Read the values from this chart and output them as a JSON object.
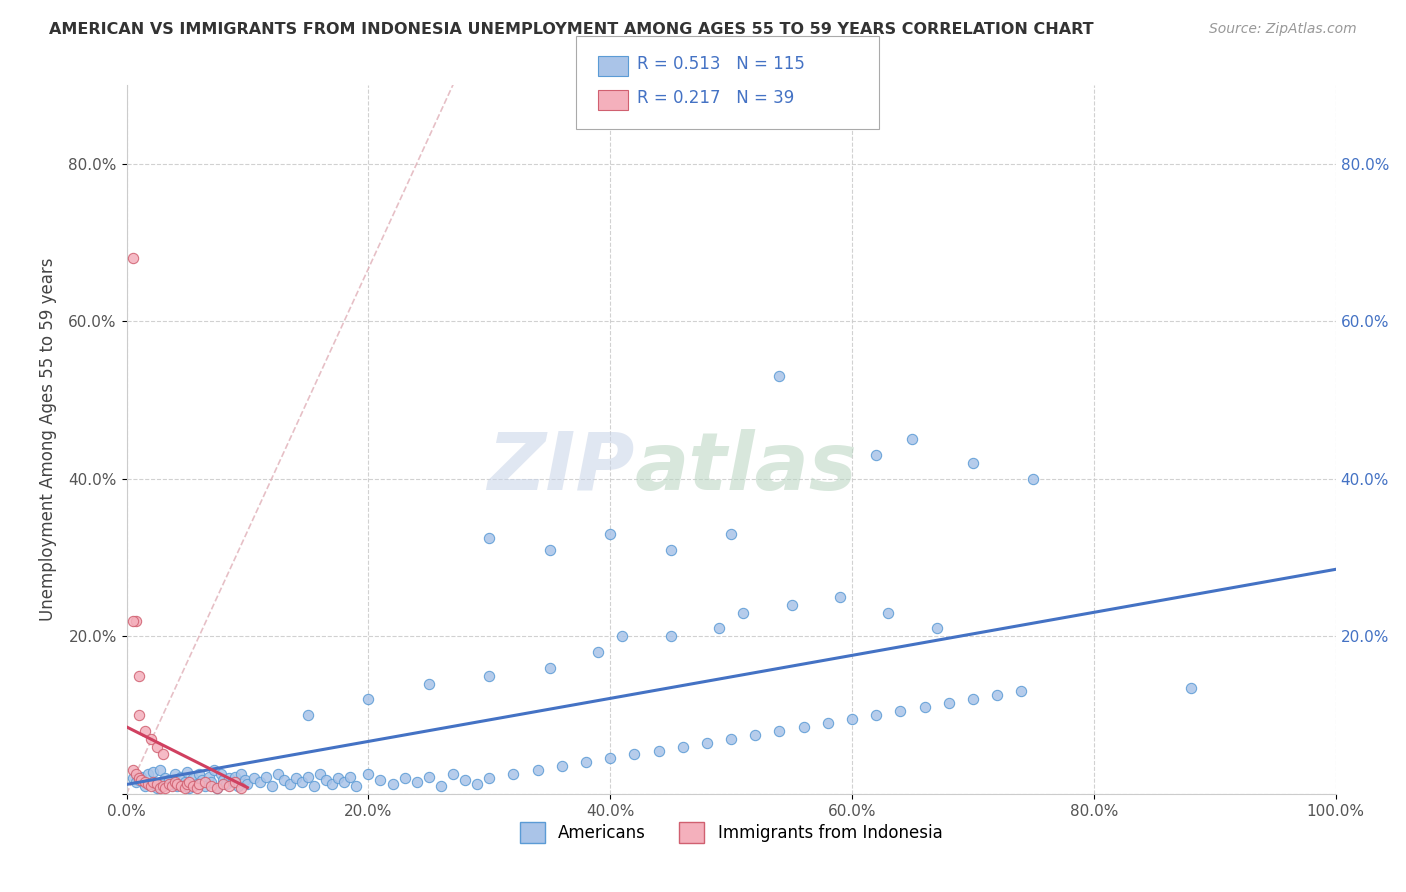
{
  "title": "AMERICAN VS IMMIGRANTS FROM INDONESIA UNEMPLOYMENT AMONG AGES 55 TO 59 YEARS CORRELATION CHART",
  "source": "Source: ZipAtlas.com",
  "ylabel": "Unemployment Among Ages 55 to 59 years",
  "xlim": [
    0,
    1.0
  ],
  "ylim": [
    0,
    0.9
  ],
  "xticks": [
    0.0,
    0.2,
    0.4,
    0.6,
    0.8,
    1.0
  ],
  "yticks": [
    0.0,
    0.2,
    0.4,
    0.6,
    0.8
  ],
  "xticklabels": [
    "0.0%",
    "20.0%",
    "40.0%",
    "60.0%",
    "80.0%",
    "100.0%"
  ],
  "yticklabels_left": [
    "",
    "20.0%",
    "40.0%",
    "60.0%",
    "80.0%"
  ],
  "yticklabels_right": [
    "80.0%",
    "60.0%",
    "40.0%",
    "20.0%"
  ],
  "americans_R": 0.513,
  "americans_N": 115,
  "indonesia_R": 0.217,
  "indonesia_N": 39,
  "legend_R_color": "#4472c4",
  "background_color": "#ffffff",
  "grid_color": "#cccccc",
  "scatter_americans_color": "#aac4e8",
  "scatter_americans_edge": "#5b9bd5",
  "scatter_indonesia_color": "#f4b0bc",
  "scatter_indonesia_edge": "#d06070",
  "trend_americans_color": "#4472c4",
  "trend_indonesia_color": "#d04060",
  "diagonal_color": "#e0b0b8",
  "watermark_zip_color": "#c8d4e8",
  "watermark_atlas_color": "#b8d4c0",
  "americans_x": [
    0.005,
    0.008,
    0.01,
    0.012,
    0.015,
    0.018,
    0.02,
    0.022,
    0.025,
    0.028,
    0.03,
    0.032,
    0.035,
    0.038,
    0.04,
    0.042,
    0.045,
    0.048,
    0.05,
    0.052,
    0.055,
    0.058,
    0.06,
    0.062,
    0.065,
    0.068,
    0.07,
    0.072,
    0.075,
    0.078,
    0.08,
    0.082,
    0.085,
    0.088,
    0.09,
    0.092,
    0.095,
    0.098,
    0.1,
    0.105,
    0.11,
    0.115,
    0.12,
    0.125,
    0.13,
    0.135,
    0.14,
    0.145,
    0.15,
    0.155,
    0.16,
    0.165,
    0.17,
    0.175,
    0.18,
    0.185,
    0.19,
    0.2,
    0.21,
    0.22,
    0.23,
    0.24,
    0.25,
    0.26,
    0.27,
    0.28,
    0.29,
    0.3,
    0.32,
    0.34,
    0.36,
    0.38,
    0.4,
    0.42,
    0.44,
    0.46,
    0.48,
    0.5,
    0.52,
    0.54,
    0.56,
    0.58,
    0.6,
    0.62,
    0.64,
    0.66,
    0.68,
    0.7,
    0.72,
    0.74,
    0.35,
    0.39,
    0.41,
    0.45,
    0.49,
    0.51,
    0.55,
    0.59,
    0.63,
    0.67,
    0.15,
    0.2,
    0.25,
    0.3,
    0.88,
    0.54,
    0.62,
    0.65,
    0.7,
    0.75,
    0.3,
    0.35,
    0.4,
    0.45,
    0.5
  ],
  "americans_y": [
    0.02,
    0.015,
    0.018,
    0.022,
    0.01,
    0.025,
    0.012,
    0.028,
    0.008,
    0.03,
    0.015,
    0.02,
    0.018,
    0.012,
    0.025,
    0.01,
    0.022,
    0.015,
    0.028,
    0.008,
    0.02,
    0.012,
    0.025,
    0.018,
    0.01,
    0.022,
    0.015,
    0.03,
    0.008,
    0.025,
    0.018,
    0.012,
    0.02,
    0.015,
    0.022,
    0.01,
    0.025,
    0.018,
    0.012,
    0.02,
    0.015,
    0.022,
    0.01,
    0.025,
    0.018,
    0.012,
    0.02,
    0.015,
    0.022,
    0.01,
    0.025,
    0.018,
    0.012,
    0.02,
    0.015,
    0.022,
    0.01,
    0.025,
    0.018,
    0.012,
    0.02,
    0.015,
    0.022,
    0.01,
    0.025,
    0.018,
    0.012,
    0.02,
    0.025,
    0.03,
    0.035,
    0.04,
    0.045,
    0.05,
    0.055,
    0.06,
    0.065,
    0.07,
    0.075,
    0.08,
    0.085,
    0.09,
    0.095,
    0.1,
    0.105,
    0.11,
    0.115,
    0.12,
    0.125,
    0.13,
    0.16,
    0.18,
    0.2,
    0.2,
    0.21,
    0.23,
    0.24,
    0.25,
    0.23,
    0.21,
    0.1,
    0.12,
    0.14,
    0.15,
    0.135,
    0.53,
    0.43,
    0.45,
    0.42,
    0.4,
    0.325,
    0.31,
    0.33,
    0.31,
    0.33
  ],
  "indonesia_x": [
    0.005,
    0.008,
    0.01,
    0.012,
    0.015,
    0.018,
    0.02,
    0.022,
    0.025,
    0.028,
    0.03,
    0.032,
    0.035,
    0.038,
    0.04,
    0.042,
    0.045,
    0.048,
    0.05,
    0.052,
    0.055,
    0.058,
    0.06,
    0.065,
    0.07,
    0.075,
    0.08,
    0.085,
    0.09,
    0.095,
    0.005,
    0.008,
    0.01,
    0.015,
    0.02,
    0.025,
    0.03,
    0.005,
    0.01
  ],
  "indonesia_y": [
    0.03,
    0.025,
    0.02,
    0.018,
    0.015,
    0.012,
    0.01,
    0.015,
    0.012,
    0.008,
    0.01,
    0.008,
    0.012,
    0.01,
    0.015,
    0.012,
    0.01,
    0.008,
    0.012,
    0.015,
    0.01,
    0.008,
    0.012,
    0.015,
    0.01,
    0.008,
    0.012,
    0.01,
    0.015,
    0.008,
    0.68,
    0.22,
    0.1,
    0.08,
    0.07,
    0.06,
    0.05,
    0.22,
    0.15
  ],
  "trend_am_x0": 0.0,
  "trend_am_x1": 1.0,
  "trend_am_y0": 0.012,
  "trend_am_y1": 0.285,
  "trend_id_x0": 0.0,
  "trend_id_x1": 0.1,
  "trend_id_y0": 0.085,
  "trend_id_y1": 0.008
}
